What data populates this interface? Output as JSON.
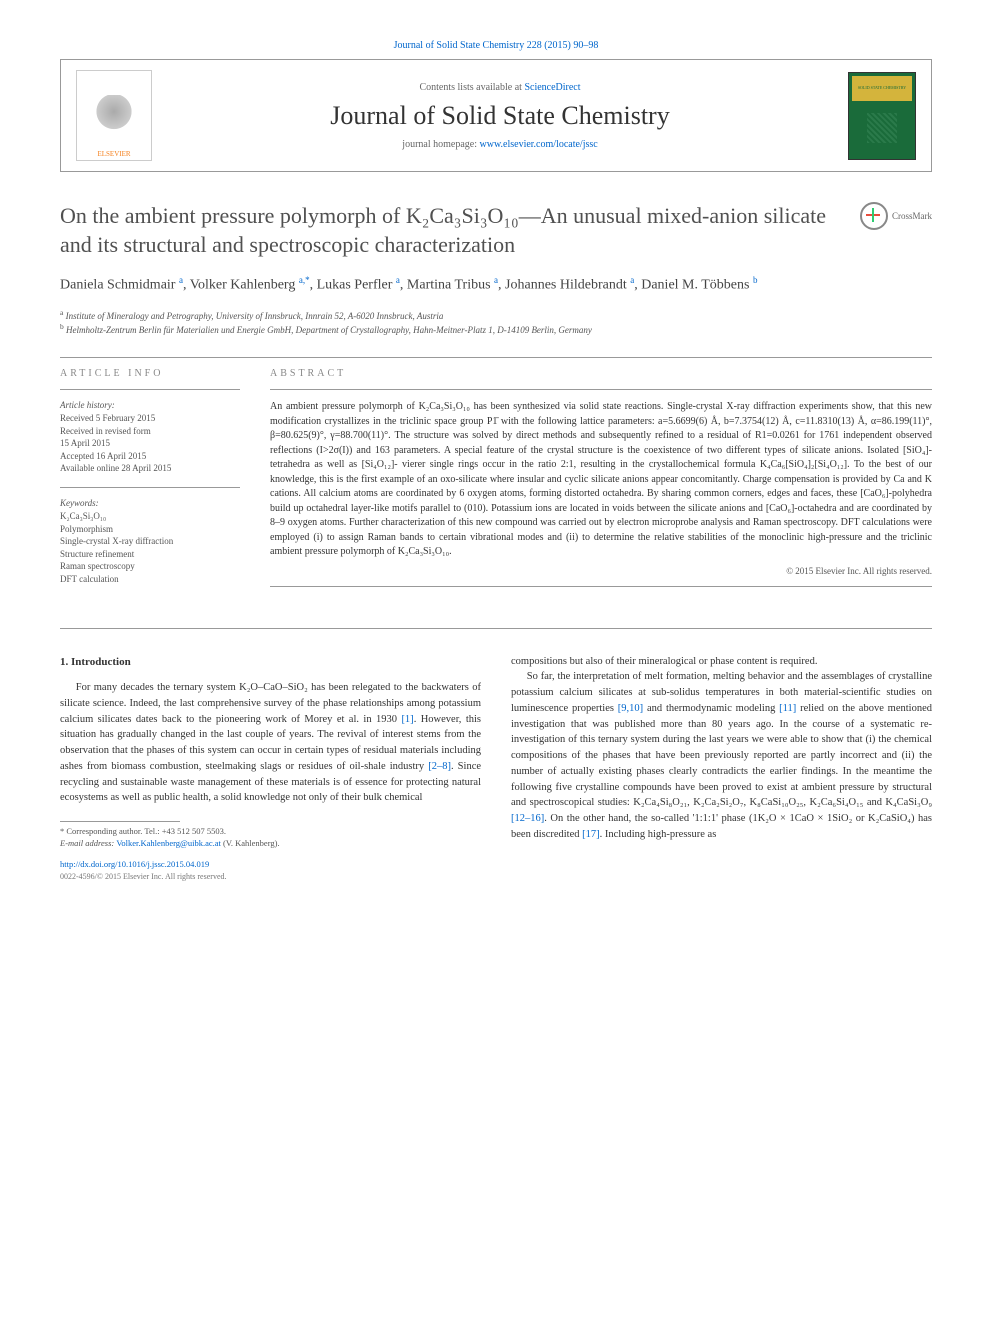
{
  "header": {
    "citation": "Journal of Solid State Chemistry 228 (2015) 90–98",
    "contents_prefix": "Contents lists available at ",
    "contents_link": "ScienceDirect",
    "journal_name": "Journal of Solid State Chemistry",
    "homepage_prefix": "journal homepage: ",
    "homepage_link": "www.elsevier.com/locate/jssc",
    "publisher": "ELSEVIER",
    "cover_title": "SOLID STATE CHEMISTRY"
  },
  "crossmark": "CrossMark",
  "title": "On the ambient pressure polymorph of K₂Ca₃Si₃O₁₀—An unusual mixed-anion silicate and its structural and spectroscopic characterization",
  "authors_html": "Daniela Schmidmair <sup>a</sup>, Volker Kahlenberg <sup>a,*</sup>, Lukas Perfler <sup>a</sup>, Martina Tribus <sup>a</sup>, Johannes Hildebrandt <sup>a</sup>, Daniel M. Többens <sup>b</sup>",
  "affiliations": {
    "a": "Institute of Mineralogy and Petrography, University of Innsbruck, Innrain 52, A-6020 Innsbruck, Austria",
    "b": "Helmholtz-Zentrum Berlin für Materialien und Energie GmbH, Department of Crystallography, Hahn-Meitner-Platz 1, D-14109 Berlin, Germany"
  },
  "article_info": {
    "heading": "ARTICLE INFO",
    "history_label": "Article history:",
    "history": [
      "Received 5 February 2015",
      "Received in revised form",
      "15 April 2015",
      "Accepted 16 April 2015",
      "Available online 28 April 2015"
    ],
    "keywords_label": "Keywords:",
    "keywords": [
      "K₂Ca₃Si₃O₁₀",
      "Polymorphism",
      "Single-crystal X-ray diffraction",
      "Structure refinement",
      "Raman spectroscopy",
      "DFT calculation"
    ]
  },
  "abstract": {
    "heading": "ABSTRACT",
    "text": "An ambient pressure polymorph of K₂Ca₃Si₃O₁₀ has been synthesized via solid state reactions. Single-crystal X-ray diffraction experiments show, that this new modification crystallizes in the triclinic space group P1̄ with the following lattice parameters: a=5.6699(6) Å, b=7.3754(12) Å, c=11.8310(13) Å, α=86.199(11)°, β=80.625(9)°, γ=88.700(11)°. The structure was solved by direct methods and subsequently refined to a residual of R1=0.0261 for 1761 independent observed reflections (I>2σ(I)) and 163 parameters. A special feature of the crystal structure is the coexistence of two different types of silicate anions. Isolated [SiO₄]- tetrahedra as well as [Si₄O₁₂]- vierer single rings occur in the ratio 2:1, resulting in the crystallochemical formula K₄Ca₆[SiO₄]₂[Si₄O₁₂]. To the best of our knowledge, this is the first example of an oxo-silicate where insular and cyclic silicate anions appear concomitantly. Charge compensation is provided by Ca and K cations. All calcium atoms are coordinated by 6 oxygen atoms, forming distorted octahedra. By sharing common corners, edges and faces, these [CaO₆]-polyhedra build up octahedral layer-like motifs parallel to (010). Potassium ions are located in voids between the silicate anions and [CaO₆]-octahedra and are coordinated by 8–9 oxygen atoms. Further characterization of this new compound was carried out by electron microprobe analysis and Raman spectroscopy. DFT calculations were employed (i) to assign Raman bands to certain vibrational modes and (ii) to determine the relative stabilities of the monoclinic high-pressure and the triclinic ambient pressure polymorph of K₂Ca₃Si₃O₁₀.",
    "copyright": "© 2015 Elsevier Inc. All rights reserved."
  },
  "body": {
    "intro_heading": "1. Introduction",
    "col1_p1": "For many decades the ternary system K₂O–CaO–SiO₂ has been relegated to the backwaters of silicate science. Indeed, the last comprehensive survey of the phase relationships among potassium calcium silicates dates back to the pioneering work of Morey et al. in 1930 [1]. However, this situation has gradually changed in the last couple of years. The revival of interest stems from the observation that the phases of this system can occur in certain types of residual materials including ashes from biomass combustion, steelmaking slags or residues of oil-shale industry [2–8]. Since recycling and sustainable waste management of these materials is of essence for protecting natural ecosystems as well as public health, a solid knowledge not only of their bulk chemical",
    "col2_p1": "compositions but also of their mineralogical or phase content is required.",
    "col2_p2": "So far, the interpretation of melt formation, melting behavior and the assemblages of crystalline potassium calcium silicates at sub-solidus temperatures in both material-scientific studies on luminescence properties [9,10] and thermodynamic modeling [11] relied on the above mentioned investigation that was published more than 80 years ago. In the course of a systematic re-investigation of this ternary system during the last years we were able to show that (i) the chemical compositions of the phases that have been previously reported are partly incorrect and (ii) the number of actually existing phases clearly contradicts the earlier findings. In the meantime the following five crystalline compounds have been proved to exist at ambient pressure by structural and spectroscopical studies: K₂Ca₄Si₈O₂₁, K₂Ca₂Si₂O₇, K₈CaSi₁₀O₂₅, K₂Ca₆Si₄O₁₅ and K₄CaSi₃O₉ [12–16]. On the other hand, the so-called '1:1:1' phase (1K₂O × 1CaO × 1SiO₂ or K₂CaSiO₄) has been discredited [17]. Including high-pressure as"
  },
  "footnotes": {
    "corr": "* Corresponding author. Tel.: +43 512 507 5503.",
    "email_label": "E-mail address: ",
    "email": "Volker.Kahlenberg@uibk.ac.at",
    "email_suffix": " (V. Kahlenberg).",
    "doi": "http://dx.doi.org/10.1016/j.jssc.2015.04.019",
    "issn_copyright": "0022-4596/© 2015 Elsevier Inc. All rights reserved."
  },
  "refs": {
    "r1": "[1]",
    "r2_8": "[2–8]",
    "r9_10": "[9,10]",
    "r11": "[11]",
    "r12_16": "[12–16]",
    "r17": "[17]"
  }
}
